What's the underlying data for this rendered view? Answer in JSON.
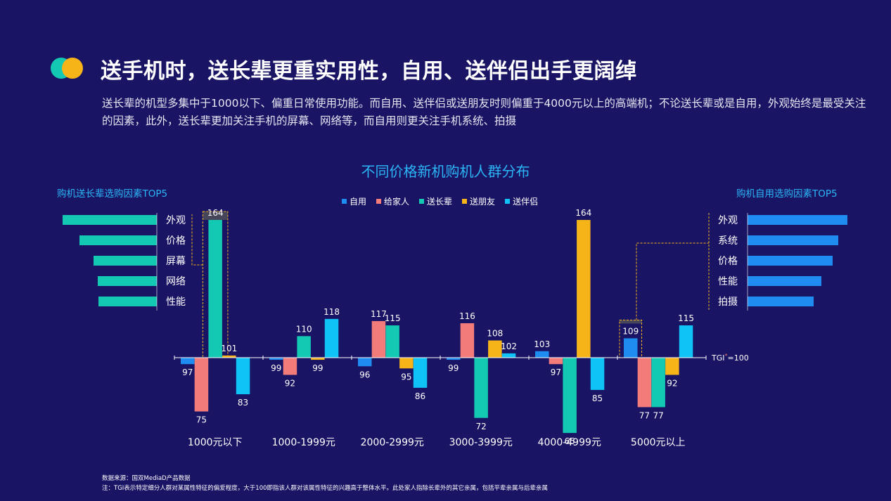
{
  "header": {
    "title": "送手机时，送长辈更重实用性，自用、送伴侣出手更阔绰",
    "description": "送长辈的机型多集中于1000以下、偏重日常使用功能。而自用、送伴侣或送朋友时则偏重于4000元以上的高端机；不论送长辈或是自用，外观始终是最受关注的因素，此外，送长辈更加关注手机的屏幕、网络等，而自用则更关注手机系统、拍摄"
  },
  "colors": {
    "自用": "#1e8cf0",
    "给家人": "#f37c7a",
    "送长辈": "#14c9b4",
    "送朋友": "#f7b418",
    "送伴侣": "#0fc3f7"
  },
  "left_panel": {
    "title": "购机送长辈选购因素TOP5",
    "bar_color": "#14c9b4",
    "factors": [
      {
        "label": "外观",
        "value": 100
      },
      {
        "label": "价格",
        "value": 82
      },
      {
        "label": "屏幕",
        "value": 67
      },
      {
        "label": "网络",
        "value": 63
      },
      {
        "label": "性能",
        "value": 62
      }
    ]
  },
  "right_panel": {
    "title": "购机自用选购因素TOP5",
    "bar_color": "#1e8cf0",
    "factors": [
      {
        "label": "外观",
        "value": 100
      },
      {
        "label": "系统",
        "value": 91
      },
      {
        "label": "价格",
        "value": 85
      },
      {
        "label": "性能",
        "value": 74
      },
      {
        "label": "拍摄",
        "value": 66
      }
    ]
  },
  "chart_data": {
    "type": "bar",
    "title": "不同价格新机购机人群分布",
    "baseline": 100,
    "baseline_label_main": "TGI",
    "baseline_label_sup": "*",
    "baseline_label_tail": "=100",
    "categories": [
      "1000元以下",
      "1000-1999元",
      "2000-2999元",
      "3000-3999元",
      "4000-4999元",
      "5000元以上"
    ],
    "series": [
      {
        "name": "自用",
        "values": [
          97,
          99,
          96,
          99,
          103,
          109
        ]
      },
      {
        "name": "给家人",
        "values": [
          75,
          92,
          117,
          116,
          97,
          77
        ]
      },
      {
        "name": "送长辈",
        "values": [
          164,
          110,
          115,
          72,
          65,
          77
        ]
      },
      {
        "name": "送朋友",
        "values": [
          101,
          99,
          95,
          108,
          164,
          92
        ]
      },
      {
        "name": "送伴侣",
        "values": [
          83,
          118,
          86,
          102,
          85,
          115
        ]
      }
    ],
    "legend_position": "top-center",
    "grid": false
  },
  "notes": {
    "source": "数据来源：国双MediaD产品数据",
    "footnote": "注：TGI表示特定细分人群对某属性特征的偏爱程度，大于100即指该人群对该属性特征的兴趣高于整体水平。此处家人指除长辈外的其它亲属，包括平辈亲属与后辈亲属"
  }
}
